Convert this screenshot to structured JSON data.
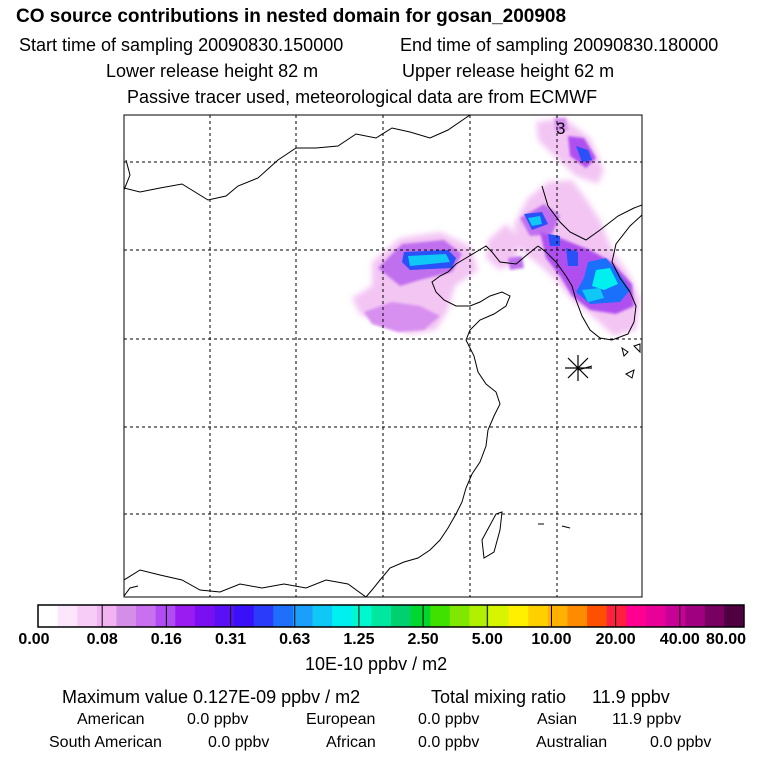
{
  "header": {
    "title": "CO  source contributions in nested domain for gosan_200908",
    "start_time": "Start time of sampling 20090830.150000",
    "end_time": "End time of sampling 20090830.180000",
    "lower_height": "Lower release height   82 m",
    "upper_height": "Upper release height   62 m",
    "tracer_note": "Passive tracer used, meteorological data are from ECMWF"
  },
  "map": {
    "corner_label": "3",
    "receptor_marker": "receptor-star"
  },
  "colorbar": {
    "colors": [
      "#ffffff",
      "#fbe6fb",
      "#f7ccf7",
      "#f2b3f2",
      "#d58ee8",
      "#c870ef",
      "#b04cf2",
      "#9a1cf0",
      "#7a10f2",
      "#5a10f5",
      "#3a10f8",
      "#2a3cfa",
      "#1e70fa",
      "#1aa0fa",
      "#10c8f5",
      "#00f0f0",
      "#00f8d0",
      "#00e8a0",
      "#00d070",
      "#00d830",
      "#40e000",
      "#80e800",
      "#b0f000",
      "#d8f500",
      "#fff000",
      "#ffd000",
      "#ffb000",
      "#ff8c00",
      "#ff5000",
      "#ff2040",
      "#ff0090",
      "#e80098",
      "#c80098",
      "#a00080",
      "#780060",
      "#500040"
    ],
    "labels": [
      "0.00",
      "0.08",
      "0.16",
      "0.31",
      "0.63",
      "1.25",
      "2.50",
      "5.00",
      "10.00",
      "20.00",
      "40.00",
      "80.00"
    ],
    "units": "10E-10 ppbv / m2"
  },
  "summary": {
    "max_value": "Maximum value  0.127E-09 ppbv / m2",
    "total_mixing": "Total mixing ratio",
    "total_mixing_value": "11.9 ppbv",
    "regions": [
      {
        "name": "American",
        "value": "0.0 ppbv"
      },
      {
        "name": "European",
        "value": "0.0 ppbv"
      },
      {
        "name": "Asian",
        "value": "11.9 ppbv"
      },
      {
        "name": "South American",
        "value": "0.0 ppbv"
      },
      {
        "name": "African",
        "value": "0.0 ppbv"
      },
      {
        "name": "Australian",
        "value": "0.0 ppbv"
      }
    ]
  }
}
